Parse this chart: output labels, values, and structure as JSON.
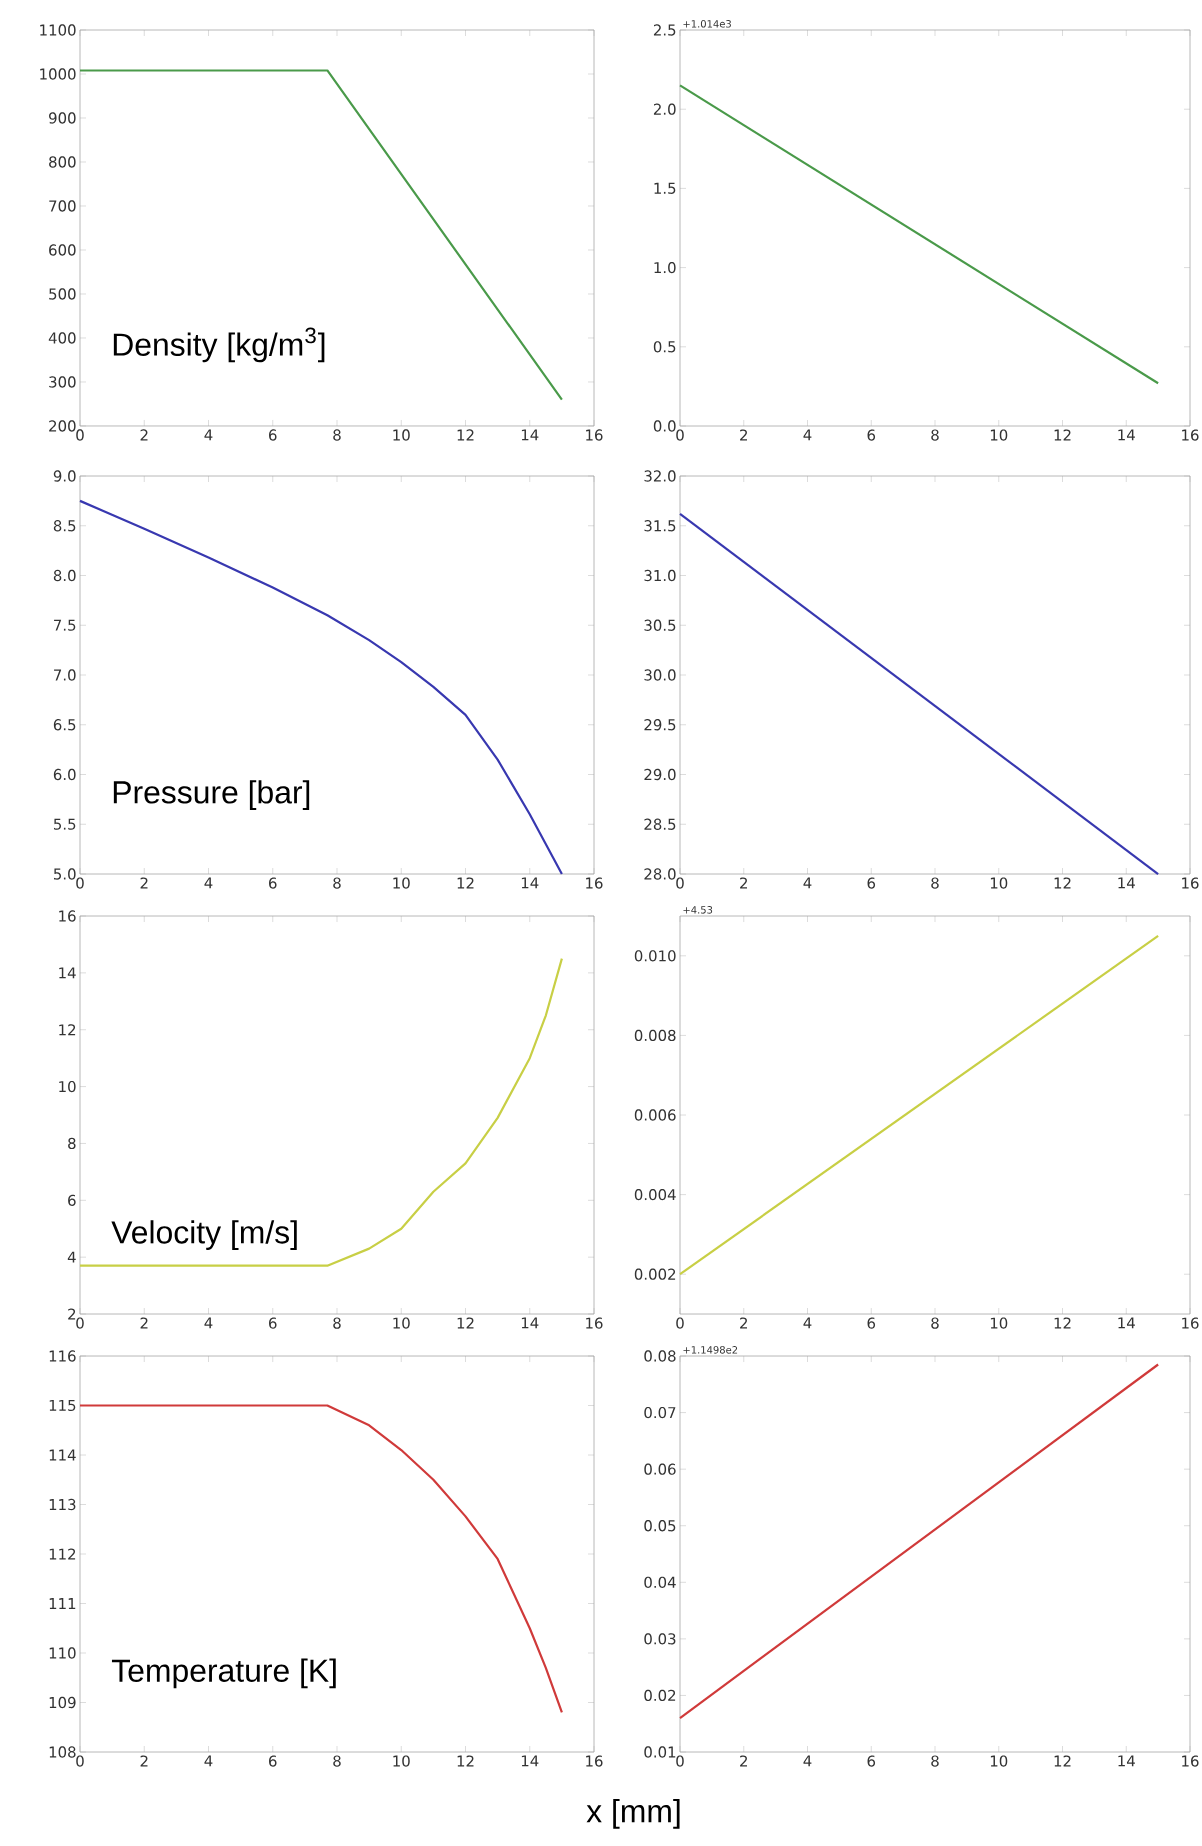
{
  "chart_data": [
    {
      "type": "line",
      "annotations": [
        "Density [kg/m$^{3}$]"
      ],
      "x": [
        0,
        7.7,
        15
      ],
      "series": [
        {
          "color": "#4a9a4a",
          "values": [
            1008,
            1008,
            260
          ]
        }
      ],
      "xlim": [
        0,
        16
      ],
      "xticks": [
        0,
        2,
        4,
        6,
        8,
        10,
        12,
        14,
        16
      ],
      "ylim": [
        200,
        1100
      ],
      "yticks": [
        200,
        300,
        400,
        500,
        600,
        700,
        800,
        900,
        1000,
        1100
      ]
    },
    {
      "type": "line",
      "annotations": [
        "+1.014e3"
      ],
      "x": [
        0,
        15
      ],
      "series": [
        {
          "color": "#4a9a4a",
          "values": [
            2.15,
            0.27
          ]
        }
      ],
      "xlim": [
        0,
        16
      ],
      "xticks": [
        0,
        2,
        4,
        6,
        8,
        10,
        12,
        14,
        16
      ],
      "ylim": [
        0,
        2.5
      ],
      "yticks": [
        {
          "value": 0,
          "label": "0.0"
        },
        0.5,
        {
          "value": 1,
          "label": "1.0"
        },
        1.5,
        {
          "value": 2,
          "label": "2.0"
        },
        2.5
      ]
    },
    {
      "type": "line",
      "annotations": [
        "Pressure [bar]"
      ],
      "x": [
        0,
        2,
        4,
        6,
        7.7,
        9,
        10,
        11,
        12,
        13,
        14,
        14.5,
        15
      ],
      "series": [
        {
          "color": "#3838b0",
          "values": [
            8.75,
            8.47,
            8.18,
            7.88,
            7.6,
            7.35,
            7.13,
            6.88,
            6.6,
            6.15,
            5.6,
            5.3,
            5.0
          ]
        }
      ],
      "xlim": [
        0,
        16
      ],
      "xticks": [
        0,
        2,
        4,
        6,
        8,
        10,
        12,
        14,
        16
      ],
      "ylim": [
        5,
        9
      ],
      "yticks": [
        {
          "value": 5,
          "label": "5.0"
        },
        5.5,
        {
          "value": 6,
          "label": "6.0"
        },
        6.5,
        {
          "value": 7,
          "label": "7.0"
        },
        7.5,
        {
          "value": 8,
          "label": "8.0"
        },
        8.5,
        {
          "value": 9,
          "label": "9.0"
        }
      ]
    },
    {
      "type": "line",
      "x": [
        0,
        15
      ],
      "series": [
        {
          "color": "#3838b0",
          "values": [
            31.62,
            28.0
          ]
        }
      ],
      "xlim": [
        0,
        16
      ],
      "xticks": [
        0,
        2,
        4,
        6,
        8,
        10,
        12,
        14,
        16
      ],
      "ylim": [
        28,
        32
      ],
      "yticks": [
        {
          "value": 28,
          "label": "28.0"
        },
        28.5,
        {
          "value": 29,
          "label": "29.0"
        },
        29.5,
        {
          "value": 30,
          "label": "30.0"
        },
        30.5,
        {
          "value": 31,
          "label": "31.0"
        },
        31.5,
        {
          "value": 32,
          "label": "32.0"
        }
      ]
    },
    {
      "type": "line",
      "annotations": [
        "Velocity [m/s]"
      ],
      "x": [
        0,
        7.7,
        9,
        10,
        11,
        12,
        13,
        14,
        14.5,
        15
      ],
      "series": [
        {
          "color": "#c8cf45",
          "values": [
            3.7,
            3.7,
            4.3,
            5.0,
            6.3,
            7.3,
            8.9,
            11.0,
            12.5,
            14.5
          ]
        }
      ],
      "xlim": [
        0,
        16
      ],
      "xticks": [
        0,
        2,
        4,
        6,
        8,
        10,
        12,
        14,
        16
      ],
      "ylim": [
        2,
        16
      ],
      "yticks": [
        2,
        4,
        6,
        8,
        10,
        12,
        14,
        16
      ]
    },
    {
      "type": "line",
      "annotations": [
        "+4.53"
      ],
      "x": [
        0,
        15
      ],
      "series": [
        {
          "color": "#c8cf45",
          "values": [
            0.002,
            0.0105
          ]
        }
      ],
      "xlim": [
        0,
        16
      ],
      "xticks": [
        0,
        2,
        4,
        6,
        8,
        10,
        12,
        14,
        16
      ],
      "ylim": [
        0.001,
        0.011
      ],
      "yticks": [
        0.002,
        0.004,
        0.006,
        0.008,
        {
          "value": 0.01,
          "label": "0.010"
        }
      ]
    },
    {
      "type": "line",
      "annotations": [
        "Temperature [K]"
      ],
      "xlabel": "x [mm]",
      "x": [
        0,
        7.7,
        9,
        10,
        11,
        12,
        13,
        14,
        14.5,
        15
      ],
      "series": [
        {
          "color": "#d03a3a",
          "values": [
            115,
            115,
            114.6,
            114.1,
            113.5,
            112.76,
            111.9,
            110.5,
            109.7,
            108.8
          ]
        }
      ],
      "xlim": [
        0,
        16
      ],
      "xticks": [
        0,
        2,
        4,
        6,
        8,
        10,
        12,
        14,
        16
      ],
      "ylim": [
        108,
        116
      ],
      "yticks": [
        108,
        109,
        110,
        111,
        112,
        113,
        114,
        115,
        116
      ]
    },
    {
      "type": "line",
      "annotations": [
        "+1.1498e2"
      ],
      "x": [
        0,
        15
      ],
      "series": [
        {
          "color": "#d03a3a",
          "values": [
            0.016,
            0.0785
          ]
        }
      ],
      "xlim": [
        0,
        16
      ],
      "xticks": [
        0,
        2,
        4,
        6,
        8,
        10,
        12,
        14,
        16
      ],
      "ylim": [
        0.01,
        0.08
      ],
      "yticks": [
        0.01,
        0.02,
        0.03,
        0.04,
        0.05,
        0.06,
        0.07,
        0.08
      ]
    }
  ]
}
